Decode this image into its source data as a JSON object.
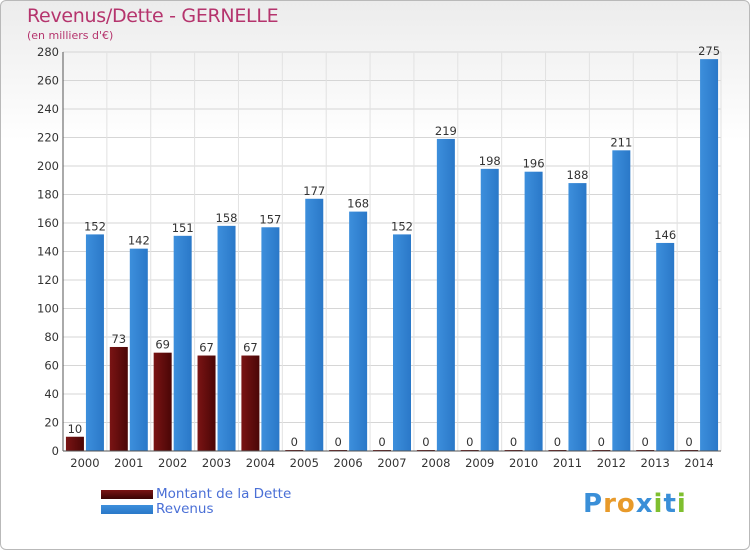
{
  "header": {
    "title": "Revenus/Dette - GERNELLE",
    "subtitle": "(en milliers d'€)"
  },
  "chart_data": {
    "type": "bar",
    "categories": [
      "2000",
      "2001",
      "2002",
      "2003",
      "2004",
      "2005",
      "2006",
      "2007",
      "2008",
      "2009",
      "2010",
      "2011",
      "2012",
      "2013",
      "2014"
    ],
    "series": [
      {
        "name": "Montant de la Dette",
        "color": "#7a1414",
        "values": [
          10,
          73,
          69,
          67,
          67,
          0,
          0,
          0,
          0,
          0,
          0,
          0,
          0,
          0,
          0
        ]
      },
      {
        "name": "Revenus",
        "color": "#3d8fdc",
        "values": [
          152,
          142,
          151,
          158,
          157,
          177,
          168,
          152,
          219,
          198,
          196,
          188,
          211,
          146,
          275
        ]
      }
    ],
    "ylim": [
      0,
      280
    ],
    "yticks": [
      0,
      20,
      40,
      60,
      80,
      100,
      120,
      140,
      160,
      180,
      200,
      220,
      240,
      260,
      280
    ],
    "grid": true,
    "legend_position": "bottom-left"
  },
  "legend": {
    "items": [
      {
        "label": "Montant de la Dette",
        "color": "#7a1414"
      },
      {
        "label": "Revenus",
        "color": "#3d8fdc"
      }
    ]
  },
  "logo": {
    "letters": [
      "P",
      "r",
      "o",
      "x",
      "i",
      "t",
      "i"
    ],
    "colors": [
      "#3a8fd8",
      "#e89a2a",
      "#e89a2a",
      "#3a8fd8",
      "#7fbf2f",
      "#3a8fd8",
      "#7fbf2f"
    ]
  }
}
